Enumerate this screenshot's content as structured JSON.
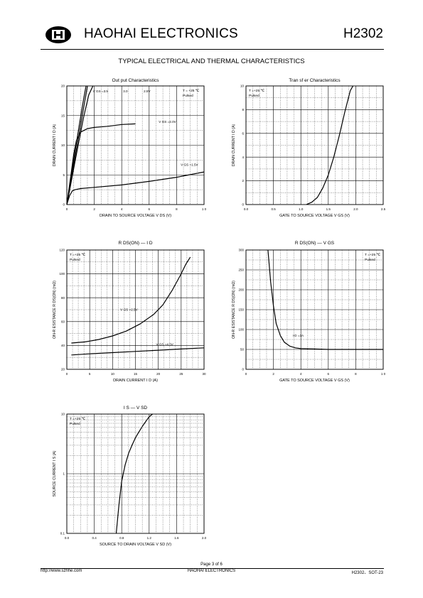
{
  "header": {
    "logo_text": "H",
    "company": "HAOHAI ELECTRONICS",
    "part": "H2302"
  },
  "section_title": "TYPICAL ELECTRICAL AND THERMAL CHARACTERISTICS",
  "footer": {
    "page": "Page 3 of 6",
    "url": "http://www.szhhe.com",
    "company": "HAOHAI ELECTRONICS",
    "part": "H2302、SOT-23"
  },
  "chart_data": [
    {
      "id": "output",
      "type": "line",
      "title": "Out put Characteristics",
      "xlabel": "DRAIN TO SOURCE  VOLTAGE   V DS  (V)",
      "ylabel": "DRAIN CURRENT   I D   (A)",
      "xlim": [
        0,
        10
      ],
      "ylim": [
        0,
        20
      ],
      "xticks": [
        0,
        2,
        4,
        6,
        8,
        10
      ],
      "xtick_labels": [
        "0",
        "2",
        "4",
        "6",
        "8",
        "1 0"
      ],
      "yticks": [
        0,
        5,
        10,
        15,
        20
      ],
      "grid": "dotted",
      "note": [
        "T = +25 ℃",
        "Pulsed"
      ],
      "series": [
        {
          "name": "V GS =3.5",
          "x": [
            0,
            0.3,
            0.6,
            0.9,
            1.2,
            1.4
          ],
          "y": [
            0,
            4.5,
            9.0,
            13.3,
            17.5,
            20
          ]
        },
        {
          "name": "3.0",
          "x": [
            0,
            0.3,
            0.6,
            0.9,
            1.2,
            1.5
          ],
          "y": [
            0,
            4.0,
            8.0,
            12.0,
            16.0,
            20
          ]
        },
        {
          "name": "2.5V",
          "x": [
            0,
            0.3,
            0.6,
            0.9,
            1.2,
            1.6,
            1.9
          ],
          "y": [
            0,
            3.6,
            7.3,
            10.9,
            14.5,
            18.5,
            20
          ]
        },
        {
          "name": "V GS =2.0V",
          "x": [
            0,
            0.3,
            0.5,
            0.7,
            1.0,
            1.5,
            2.0,
            3.0,
            4.0,
            5.0
          ],
          "y": [
            0,
            5.0,
            8.5,
            10.8,
            12.2,
            12.8,
            13.0,
            13.2,
            13.5,
            13.6
          ]
        },
        {
          "name": "V GS =1.5V",
          "x": [
            0,
            0.2,
            0.4,
            0.6,
            1.0,
            2.0,
            4.0,
            6.0,
            8.0,
            10.0
          ],
          "y": [
            0,
            1.5,
            2.3,
            2.5,
            2.7,
            2.9,
            3.3,
            3.9,
            4.6,
            5.5
          ]
        }
      ]
    },
    {
      "id": "transfer",
      "type": "line",
      "title": "Tran  sf er Characteristics",
      "xlabel": "GATE TO SOURCE VOLTAGE   V GS  (V)",
      "ylabel": "DRAIN CURRENT   I D   (A)",
      "xlim": [
        0,
        2.5
      ],
      "ylim": [
        0,
        10
      ],
      "xticks": [
        0,
        0.5,
        1.0,
        1.5,
        2.0,
        2.5
      ],
      "xtick_labels": [
        "0.0",
        "0.5",
        "1.0",
        "1.5",
        "2.0",
        "2.5"
      ],
      "yticks": [
        0,
        2,
        4,
        6,
        8,
        10
      ],
      "grid": "dotted",
      "note": [
        "T =+25 ℃",
        "Pulsed"
      ],
      "series": [
        {
          "name": "",
          "x": [
            1.1,
            1.2,
            1.3,
            1.4,
            1.5,
            1.6,
            1.7,
            1.8,
            1.9,
            1.95
          ],
          "y": [
            0,
            0.2,
            0.6,
            1.4,
            2.5,
            4.0,
            5.8,
            7.8,
            9.6,
            10
          ]
        }
      ]
    },
    {
      "id": "rds-id",
      "type": "line",
      "title": "R DS(ON)   —   I D",
      "xlabel": "DRAIN CURRENT    I D   (A)",
      "ylabel": "ON-R ESISTANCE   R DS(ON)   (mΩ)",
      "xlim": [
        0,
        30
      ],
      "ylim": [
        20,
        120
      ],
      "xticks": [
        0,
        5,
        10,
        15,
        20,
        25,
        30
      ],
      "yticks": [
        20,
        40,
        60,
        80,
        100,
        120
      ],
      "grid": "dotted",
      "note": [
        "T =+25 ℃",
        "Pulsed"
      ],
      "series": [
        {
          "name": "V GS =2.5V",
          "x": [
            1,
            4,
            7,
            10,
            13,
            16,
            19,
            21,
            23,
            25,
            26,
            27
          ],
          "y": [
            42,
            43,
            45,
            48,
            52,
            58,
            66,
            74,
            86,
            100,
            108,
            114
          ]
        },
        {
          "name": "V GS =4.5V",
          "x": [
            1,
            5,
            10,
            15,
            20,
            25,
            30
          ],
          "y": [
            32,
            33,
            34,
            35,
            36,
            37,
            38
          ]
        }
      ]
    },
    {
      "id": "rds-vgs",
      "type": "line",
      "title": "R DS(ON)   —   V GS",
      "xlabel": "GATE TO SOURCE VOLTAGE    V GS  (V)",
      "ylabel": "ON-R ESISTANCE   R DS(ON)   (mΩ)",
      "xlim": [
        0,
        10
      ],
      "ylim": [
        0,
        300
      ],
      "xticks": [
        0,
        2,
        4,
        6,
        8,
        10
      ],
      "xtick_labels": [
        "0",
        "2",
        "4",
        "6",
        "8",
        "1 0"
      ],
      "yticks": [
        0,
        50,
        100,
        150,
        200,
        250,
        300
      ],
      "grid": "dotted",
      "note": [
        "T =+25 ℃",
        "Pulsed"
      ],
      "series": [
        {
          "name": "I D =3A",
          "x": [
            1.6,
            1.8,
            2.0,
            2.2,
            2.5,
            2.8,
            3.2,
            3.6,
            4.0,
            5.0,
            6.0,
            8.0,
            10.0
          ],
          "y": [
            300,
            220,
            160,
            115,
            85,
            68,
            58,
            54,
            52,
            51,
            50,
            50,
            50
          ]
        }
      ]
    },
    {
      "id": "is-vsd",
      "type": "line",
      "title": "I S   —   V SD",
      "xlabel": "SOURCE TO DRAIN  VOLTAGE   V SD   (V)",
      "ylabel": "SOURCE CURRENT   I S   (A)",
      "xscale": "linear",
      "yscale": "log",
      "xlim": [
        0,
        2.0
      ],
      "ylim": [
        0.1,
        10
      ],
      "xticks": [
        0,
        0.4,
        0.8,
        1.2,
        1.6,
        2.0
      ],
      "xtick_labels": [
        "0.0",
        "0.4",
        "0.8",
        "1.2",
        "1.6",
        "2.0"
      ],
      "yticks": [
        0.1,
        1,
        10
      ],
      "ytick_labels": [
        "0.1",
        "1",
        "10"
      ],
      "grid": "dotted",
      "note": [
        "T =+25 ℃",
        "Pulsed"
      ],
      "series": [
        {
          "name": "",
          "x": [
            0.72,
            0.76,
            0.8,
            0.85,
            0.9,
            0.95,
            1.0,
            1.05,
            1.1,
            1.15,
            1.2,
            1.25
          ],
          "y": [
            0.1,
            0.3,
            0.75,
            1.4,
            2.2,
            3.0,
            4.0,
            5.0,
            6.2,
            7.5,
            9.0,
            10
          ]
        }
      ]
    }
  ]
}
